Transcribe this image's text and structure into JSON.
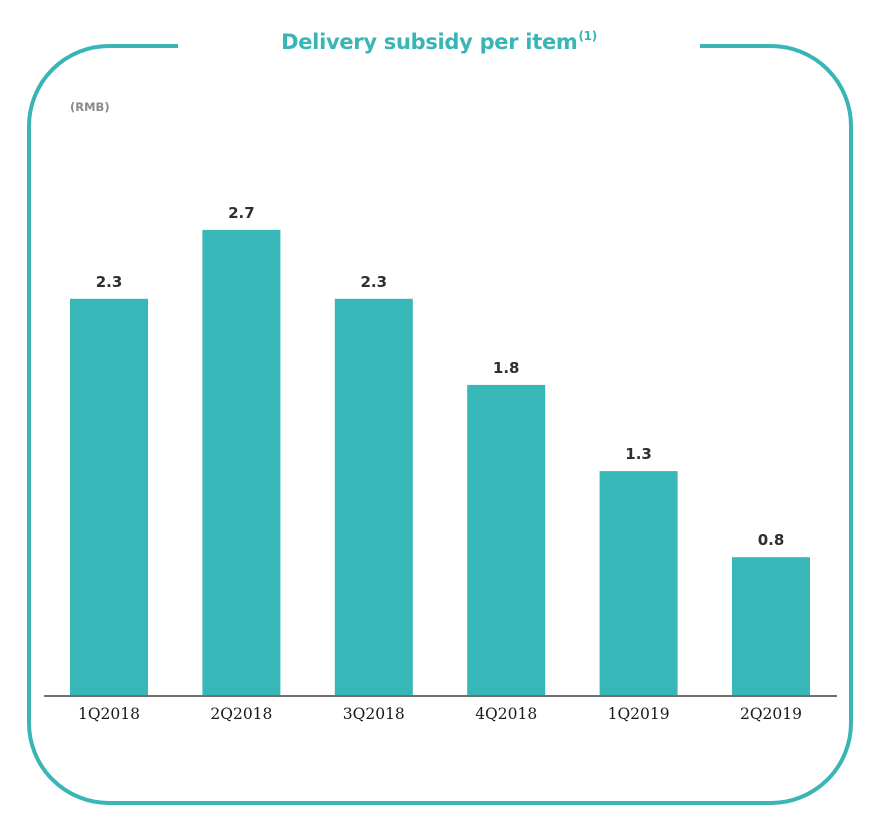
{
  "title_text": "Delivery subsidy per item",
  "title_footnote": "(1)",
  "unit_label": "(RMB)",
  "colors": {
    "bar": "#38b7b8",
    "frame": "#3ab5b6",
    "title": "#3ab5b6"
  },
  "chart_data": {
    "type": "bar",
    "title": "Delivery subsidy per item(1)",
    "ylabel": "(RMB)",
    "categories": [
      "1Q2018",
      "2Q2018",
      "3Q2018",
      "4Q2018",
      "1Q2019",
      "2Q2019"
    ],
    "values": [
      2.3,
      2.7,
      2.3,
      1.8,
      1.3,
      0.8
    ],
    "value_labels": [
      "2.3",
      "2.7",
      "2.3",
      "1.8",
      "1.3",
      "0.8"
    ],
    "ylim": [
      0,
      2.92
    ],
    "grid": false,
    "legend": "none"
  }
}
